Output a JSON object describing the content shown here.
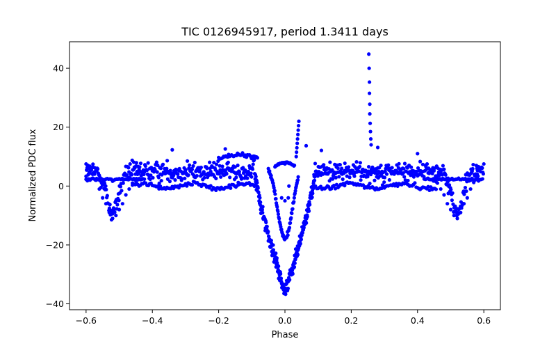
{
  "chart_data": {
    "type": "scatter",
    "title": "TIC 0126945917, period 1.3411 days",
    "xlabel": "Phase",
    "ylabel": "Normalized PDC flux",
    "xlim": [
      -0.65,
      0.65
    ],
    "ylim": [
      -42,
      49
    ],
    "x_ticks": [
      -0.6,
      -0.4,
      -0.2,
      0.0,
      0.2,
      0.4,
      0.6
    ],
    "x_tick_labels": [
      "−0.6",
      "−0.4",
      "−0.2",
      "0.0",
      "0.2",
      "0.4",
      "0.6"
    ],
    "y_ticks": [
      -40,
      -20,
      0,
      20,
      40
    ],
    "y_tick_labels": [
      "−40",
      "−20",
      "0",
      "20",
      "40"
    ],
    "grid": false,
    "marker_color": "#0000ff",
    "points": [
      [
        0.253,
        44.8
      ],
      [
        0.254,
        40.0
      ],
      [
        0.255,
        35.3
      ],
      [
        0.255,
        31.5
      ],
      [
        0.256,
        27.8
      ],
      [
        0.256,
        24.5
      ],
      [
        0.257,
        21.3
      ],
      [
        0.258,
        18.5
      ],
      [
        0.259,
        16.0
      ],
      [
        0.26,
        14.0
      ],
      [
        0.042,
        22.0
      ],
      [
        0.041,
        20.5
      ],
      [
        0.04,
        19.0
      ],
      [
        0.039,
        17.5
      ],
      [
        0.038,
        16.0
      ],
      [
        0.037,
        14.5
      ],
      [
        0.036,
        13.0
      ],
      [
        0.035,
        11.5
      ],
      [
        0.034,
        10.0
      ],
      [
        0.064,
        13.7
      ],
      [
        0.012,
        0.0
      ],
      [
        0.01,
        -4.0
      ],
      [
        0.0,
        -5.0
      ],
      [
        -0.01,
        -4.0
      ],
      [
        -0.34,
        12.3
      ],
      [
        -0.18,
        12.6
      ],
      [
        0.11,
        12.1
      ],
      [
        0.28,
        13.1
      ],
      [
        0.4,
        11.0
      ],
      [
        -0.6,
        7.5
      ],
      [
        -0.59,
        6.0
      ],
      [
        -0.58,
        4.0
      ],
      [
        -0.57,
        2.0
      ],
      [
        -0.56,
        -1.0
      ],
      [
        -0.55,
        -4.0
      ],
      [
        -0.54,
        -6.0
      ],
      [
        -0.53,
        -9.0
      ],
      [
        -0.52,
        -11.0
      ],
      [
        -0.51,
        -10.0
      ],
      [
        -0.5,
        -8.0
      ],
      [
        -0.49,
        -6.0
      ],
      [
        -0.48,
        -3.0
      ],
      [
        -0.47,
        -1.0
      ],
      [
        -0.46,
        1.0
      ],
      [
        0.46,
        1.0
      ],
      [
        0.47,
        -1.0
      ],
      [
        0.48,
        -3.0
      ],
      [
        0.49,
        -6.0
      ],
      [
        0.5,
        -8.0
      ],
      [
        0.51,
        -10.0
      ],
      [
        0.52,
        -11.0
      ],
      [
        0.53,
        -9.0
      ],
      [
        0.54,
        -6.0
      ],
      [
        0.55,
        -4.0
      ],
      [
        0.56,
        -1.0
      ],
      [
        0.57,
        2.0
      ],
      [
        0.58,
        4.0
      ],
      [
        0.59,
        6.0
      ],
      [
        0.6,
        7.5
      ]
    ]
  }
}
